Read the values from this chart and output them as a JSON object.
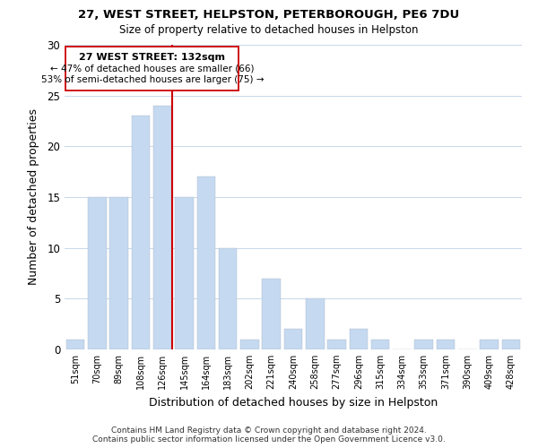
{
  "title1": "27, WEST STREET, HELPSTON, PETERBOROUGH, PE6 7DU",
  "title2": "Size of property relative to detached houses in Helpston",
  "xlabel": "Distribution of detached houses by size in Helpston",
  "ylabel": "Number of detached properties",
  "bar_labels": [
    "51sqm",
    "70sqm",
    "89sqm",
    "108sqm",
    "126sqm",
    "145sqm",
    "164sqm",
    "183sqm",
    "202sqm",
    "221sqm",
    "240sqm",
    "258sqm",
    "277sqm",
    "296sqm",
    "315sqm",
    "334sqm",
    "353sqm",
    "371sqm",
    "390sqm",
    "409sqm",
    "428sqm"
  ],
  "bar_values": [
    1,
    15,
    15,
    23,
    24,
    15,
    17,
    10,
    1,
    7,
    2,
    5,
    1,
    2,
    1,
    0,
    1,
    1,
    0,
    1,
    1
  ],
  "bar_color": "#c5d9f0",
  "red_line_after_index": 4,
  "annotation_title": "27 WEST STREET: 132sqm",
  "annotation_line1": "← 47% of detached houses are smaller (66)",
  "annotation_line2": "53% of semi-detached houses are larger (75) →",
  "red_line_color": "#cc0000",
  "annotation_box_edge": "#cc0000",
  "ylim": [
    0,
    30
  ],
  "footnote1": "Contains HM Land Registry data © Crown copyright and database right 2024.",
  "footnote2": "Contains public sector information licensed under the Open Government Licence v3.0."
}
